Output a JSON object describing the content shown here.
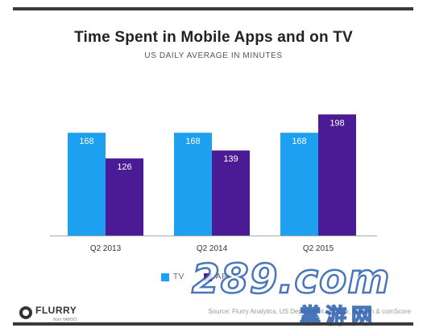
{
  "title": "Time Spent in Mobile Apps and on TV",
  "subtitle": "US DAILY AVERAGE IN MINUTES",
  "colors": {
    "tv": "#1ea0f0",
    "apps": "#4b1b96",
    "bar_label": "#ffffff",
    "axis": "#aaaaaa"
  },
  "chart_data": {
    "type": "bar",
    "title": "Time Spent in Mobile Apps and on TV",
    "subtitle": "US DAILY AVERAGE IN MINUTES",
    "categories": [
      "Q2 2013",
      "Q2 2014",
      "Q2 2015"
    ],
    "series": [
      {
        "name": "TV",
        "values": [
          168,
          168,
          168
        ]
      },
      {
        "name": "APPS",
        "values": [
          126,
          139,
          198
        ]
      }
    ],
    "ylim": [
      0,
      205
    ],
    "grid": false,
    "legend": "bottom-center",
    "data_labels": true
  },
  "legend": {
    "tv_label": "TV",
    "apps_label": "APPS"
  },
  "footer": {
    "brand": "FLURRY",
    "brand_sub": "from YAHOO",
    "source": "Source: Flurry Analytics, US Department of Labor, Nielsen & comScore"
  },
  "watermark": {
    "text": "289.com",
    "sub_text": "掌游网"
  }
}
